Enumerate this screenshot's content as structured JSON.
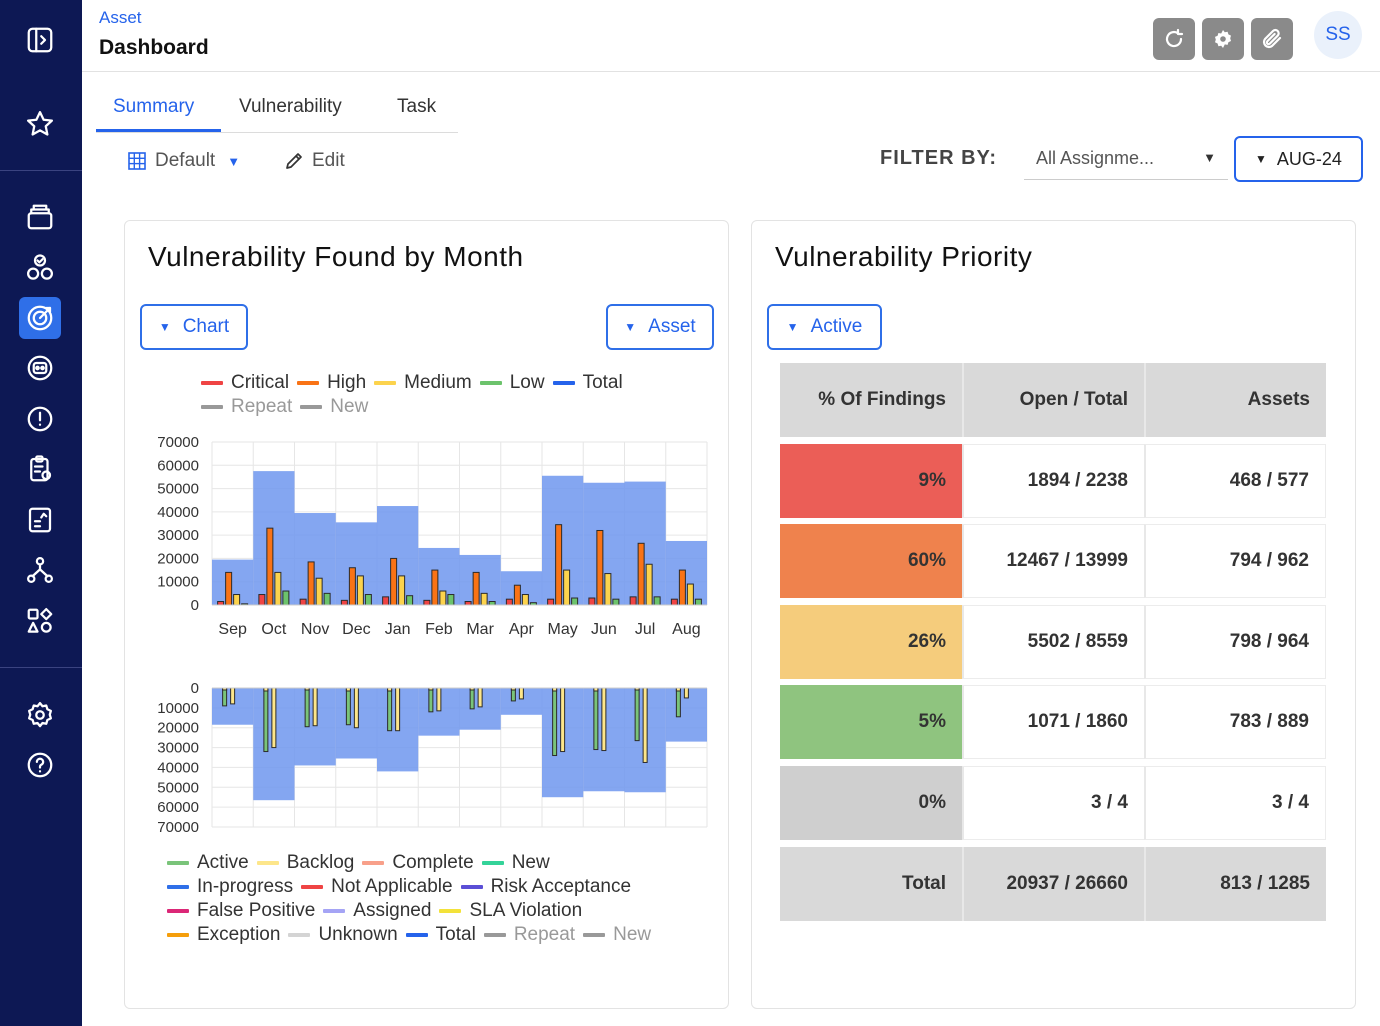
{
  "header": {
    "breadcrumb": "Asset",
    "title": "Dashboard",
    "user_initials": "SS"
  },
  "tabs": [
    {
      "label": "Summary",
      "active": true
    },
    {
      "label": "Vulnerability",
      "active": false
    },
    {
      "label": "Task",
      "active": false
    }
  ],
  "toolbar": {
    "view_label": "Default",
    "edit_label": "Edit"
  },
  "filter": {
    "label": "FILTER BY:",
    "assignee": "All Assignme...",
    "month": "AUG-24"
  },
  "left_card": {
    "title": "Vulnerability Found by Month",
    "chart_dropdown": "Chart",
    "asset_dropdown": "Asset"
  },
  "legend_top": [
    {
      "label": "Critical",
      "color": "#ef4444"
    },
    {
      "label": "High",
      "color": "#f97316"
    },
    {
      "label": "Medium",
      "color": "#fcd34d"
    },
    {
      "label": "Low",
      "color": "#6cc36c"
    },
    {
      "label": "Total",
      "color": "#2563eb"
    },
    {
      "label": "Repeat",
      "color": "#999999",
      "muted": true
    },
    {
      "label": "New",
      "color": "#999999",
      "muted": true
    }
  ],
  "legend_bottom": [
    {
      "label": "Active",
      "color": "#7ac47a"
    },
    {
      "label": "Backlog",
      "color": "#fde68a"
    },
    {
      "label": "Complete",
      "color": "#f8a08a"
    },
    {
      "label": "New",
      "color": "#34d399"
    },
    {
      "label": "In-progress",
      "color": "#2f6fe8"
    },
    {
      "label": "Not Applicable",
      "color": "#ef4444"
    },
    {
      "label": "Risk Acceptance",
      "color": "#5b4fd6"
    },
    {
      "label": "False Positive",
      "color": "#db2777"
    },
    {
      "label": "Assigned",
      "color": "#a5a4f5"
    },
    {
      "label": "SLA Violation",
      "color": "#f3e23a"
    },
    {
      "label": "Exception",
      "color": "#f59e0b"
    },
    {
      "label": "Unknown",
      "color": "#d4d4d4"
    },
    {
      "label": "Total",
      "color": "#2563eb"
    },
    {
      "label": "Repeat",
      "color": "#999999",
      "muted": true
    },
    {
      "label": "New",
      "color": "#999999",
      "muted": true
    }
  ],
  "chart_data": [
    {
      "type": "bar",
      "categories": [
        "Sep",
        "Oct",
        "Nov",
        "Dec",
        "Jan",
        "Feb",
        "Mar",
        "Apr",
        "May",
        "Jun",
        "Jul",
        "Aug"
      ],
      "y_ticks": [
        0,
        10000,
        20000,
        30000,
        40000,
        50000,
        60000,
        70000
      ],
      "ylim": [
        0,
        70000
      ],
      "grid": true,
      "series": [
        {
          "name": "Total",
          "kind": "area",
          "values": [
            19500,
            57500,
            39500,
            35500,
            42500,
            24500,
            21500,
            14500,
            55500,
            52500,
            53000,
            27500
          ]
        },
        {
          "name": "Critical",
          "values": [
            1500,
            4500,
            2500,
            2000,
            3500,
            2000,
            1500,
            2500,
            2500,
            3000,
            3500,
            2500
          ]
        },
        {
          "name": "High",
          "values": [
            14000,
            33000,
            18500,
            16000,
            20000,
            15000,
            14000,
            8500,
            34500,
            32000,
            26500,
            15000
          ]
        },
        {
          "name": "Medium",
          "values": [
            4500,
            14000,
            11500,
            12500,
            12500,
            6000,
            5000,
            4500,
            15000,
            13500,
            17500,
            9000
          ]
        },
        {
          "name": "Low",
          "values": [
            500,
            6000,
            5000,
            4500,
            4000,
            4500,
            1500,
            1000,
            3000,
            2500,
            3500,
            2500
          ]
        }
      ]
    },
    {
      "type": "bar",
      "orientation": "inverted",
      "categories": [
        "Sep",
        "Oct",
        "Nov",
        "Dec",
        "Jan",
        "Feb",
        "Mar",
        "Apr",
        "May",
        "Jun",
        "Jul",
        "Aug"
      ],
      "y_ticks": [
        0,
        10000,
        20000,
        30000,
        40000,
        50000,
        60000,
        70000
      ],
      "ylim": [
        0,
        70000
      ],
      "grid": true,
      "series": [
        {
          "name": "Total",
          "kind": "area",
          "values": [
            18500,
            56500,
            39000,
            35500,
            42000,
            24000,
            21000,
            13500,
            55000,
            52000,
            52500,
            27000
          ]
        },
        {
          "name": "Active",
          "values": [
            9000,
            32000,
            19500,
            18500,
            21500,
            12000,
            10500,
            6500,
            34000,
            31000,
            26500,
            14500
          ],
          "top_values": [
            1000,
            1500,
            1000,
            1500,
            1500,
            1000,
            1000,
            1000,
            1500,
            1500,
            1000,
            1500
          ]
        },
        {
          "name": "Backlog",
          "values": [
            8000,
            30000,
            19000,
            20000,
            21500,
            11500,
            9500,
            5500,
            32000,
            31500,
            37500,
            5000
          ]
        }
      ]
    }
  ],
  "priority": {
    "title": "Vulnerability Priority",
    "dropdown": "Active",
    "headers": [
      "% Of Findings",
      "Open / Total",
      "Assets"
    ],
    "rows": [
      {
        "pct": "9%",
        "open_total": "1894 / 2238",
        "assets": "468 / 577",
        "color": "#eb5e57"
      },
      {
        "pct": "60%",
        "open_total": "12467 / 13999",
        "assets": "794 / 962",
        "color": "#ef824d"
      },
      {
        "pct": "26%",
        "open_total": "5502 / 8559",
        "assets": "798 / 964",
        "color": "#f5cc7c"
      },
      {
        "pct": "5%",
        "open_total": "1071 / 1860",
        "assets": "783 / 889",
        "color": "#8fc47f"
      },
      {
        "pct": "0%",
        "open_total": "3 / 4",
        "assets": "3 / 4",
        "color": "#cfcfcf"
      }
    ],
    "total": {
      "label": "Total",
      "open_total": "20937 / 26660",
      "assets": "813 / 1285"
    }
  }
}
